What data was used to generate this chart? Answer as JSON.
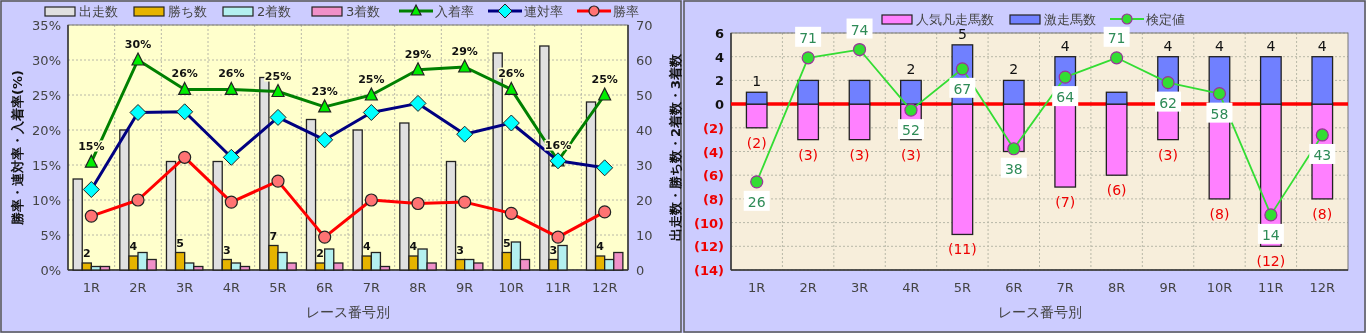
{
  "chart_data": [
    {
      "type": "bar",
      "categories": [
        "1R",
        "2R",
        "3R",
        "4R",
        "5R",
        "6R",
        "7R",
        "8R",
        "9R",
        "10R",
        "11R",
        "12R"
      ],
      "xlabel": "レース番号別",
      "ylabel": "勝率・連対率・入着率(%)",
      "y2label": "出走数・勝ち数・2着数・3着数",
      "ylim": [
        0,
        35
      ],
      "yticks": [
        {
          "value": 0,
          "label": "0%"
        },
        {
          "value": 5,
          "label": "5%"
        },
        {
          "value": 10,
          "label": "10%"
        },
        {
          "value": 15,
          "label": "15%"
        },
        {
          "value": 20,
          "label": "20%"
        },
        {
          "value": 25,
          "label": "25%"
        },
        {
          "value": 30,
          "label": "30%"
        },
        {
          "value": 35,
          "label": "35%"
        }
      ],
      "y2lim": [
        0,
        70
      ],
      "y2ticks": [
        0,
        10,
        20,
        30,
        40,
        50,
        60,
        70
      ],
      "grid": true,
      "legend": "top",
      "series": [
        {
          "name": "出走数",
          "axis": "y2",
          "color": "#e0e0e0",
          "values": [
            26,
            40,
            31,
            31,
            55,
            43,
            40,
            42,
            31,
            62,
            64,
            48
          ]
        },
        {
          "name": "勝ち数",
          "axis": "y2",
          "color": "#e6b400",
          "values": [
            2,
            4,
            5,
            3,
            7,
            2,
            4,
            4,
            3,
            5,
            3,
            4
          ],
          "value_labels": [
            "2",
            "4",
            "5",
            "3",
            "7",
            "2",
            "4",
            "4",
            "3",
            "5",
            "3",
            "4"
          ]
        },
        {
          "name": "2着数",
          "axis": "y2",
          "color": "#b4f0f0",
          "values": [
            1,
            5,
            2,
            2,
            5,
            6,
            5,
            6,
            3,
            8,
            7,
            3
          ]
        },
        {
          "name": "3着数",
          "axis": "y2",
          "color": "#f090c8",
          "values": [
            1,
            3,
            1,
            1,
            2,
            2,
            1,
            2,
            2,
            3,
            0,
            5
          ]
        },
        {
          "name": "入着率",
          "type": "line",
          "color": "#008000",
          "marker": "triangle",
          "values": [
            15.4,
            30,
            25.8,
            25.8,
            25.5,
            23.3,
            25,
            28.6,
            29,
            25.8,
            15.6,
            25
          ],
          "value_labels": [
            "15%",
            "30%",
            "26%",
            "26%",
            "25%",
            "23%",
            "25%",
            "29%",
            "29%",
            "26%",
            "16%",
            "25%"
          ]
        },
        {
          "name": "連対率",
          "type": "line",
          "color": "#000080",
          "marker": "diamond",
          "values": [
            11.5,
            22.5,
            22.6,
            16.1,
            21.8,
            18.6,
            22.5,
            23.8,
            19.4,
            21,
            15.6,
            14.6
          ]
        },
        {
          "name": "勝率",
          "type": "line",
          "color": "#ff0000",
          "marker": "circle",
          "values": [
            7.7,
            10,
            16.1,
            9.7,
            12.7,
            4.7,
            10,
            9.5,
            9.7,
            8.1,
            4.7,
            8.3
          ]
        }
      ]
    },
    {
      "type": "bar",
      "stacked": true,
      "categories": [
        "1R",
        "2R",
        "3R",
        "4R",
        "5R",
        "6R",
        "7R",
        "8R",
        "9R",
        "10R",
        "11R",
        "12R"
      ],
      "xlabel": "レース番号別",
      "ylim": [
        -14,
        6
      ],
      "yticks": [
        {
          "value": -14,
          "label": "(14)"
        },
        {
          "value": -12,
          "label": "(12)"
        },
        {
          "value": -10,
          "label": "(10)"
        },
        {
          "value": -8,
          "label": "(8)"
        },
        {
          "value": -6,
          "label": "(6)"
        },
        {
          "value": -4,
          "label": "(4)"
        },
        {
          "value": -2,
          "label": "(2)"
        },
        0,
        2,
        4,
        6
      ],
      "y2lim": [
        -6,
        80
      ],
      "grid": true,
      "legend": "top",
      "ref_lines": [
        {
          "axis": "y",
          "value": 0,
          "color": "#ff0000"
        }
      ],
      "series": [
        {
          "name": "人気凡走馬数",
          "color": "#ff80ff",
          "values": [
            -2,
            -3,
            -3,
            -3,
            -11,
            -4,
            -7,
            -6,
            -3,
            -8,
            -12,
            -8
          ],
          "value_labels": [
            "(2)",
            "(3)",
            "(3)",
            "(3)",
            "(11)",
            null,
            "(7)",
            "(6)",
            "(3)",
            "(8)",
            "(12)",
            "(8)"
          ]
        },
        {
          "name": "激走馬数",
          "color": "#7080ff",
          "values": [
            1,
            2,
            2,
            2,
            5,
            2,
            4,
            1,
            4,
            4,
            4,
            4
          ],
          "value_labels": [
            "1",
            null,
            null,
            "2",
            "5",
            "2",
            "4",
            null,
            "4",
            "4",
            "4",
            "4"
          ]
        },
        {
          "name": "検定値",
          "type": "line",
          "axis": "y2",
          "color": "#33dd33",
          "marker": "circle",
          "values": [
            26,
            71,
            74,
            52,
            67,
            38,
            64,
            71,
            62,
            58,
            14,
            43
          ],
          "value_labels": [
            "26",
            "71",
            "74",
            "52",
            "67",
            "38",
            "64",
            "71",
            "62",
            "58",
            "14",
            "43"
          ]
        }
      ]
    }
  ]
}
